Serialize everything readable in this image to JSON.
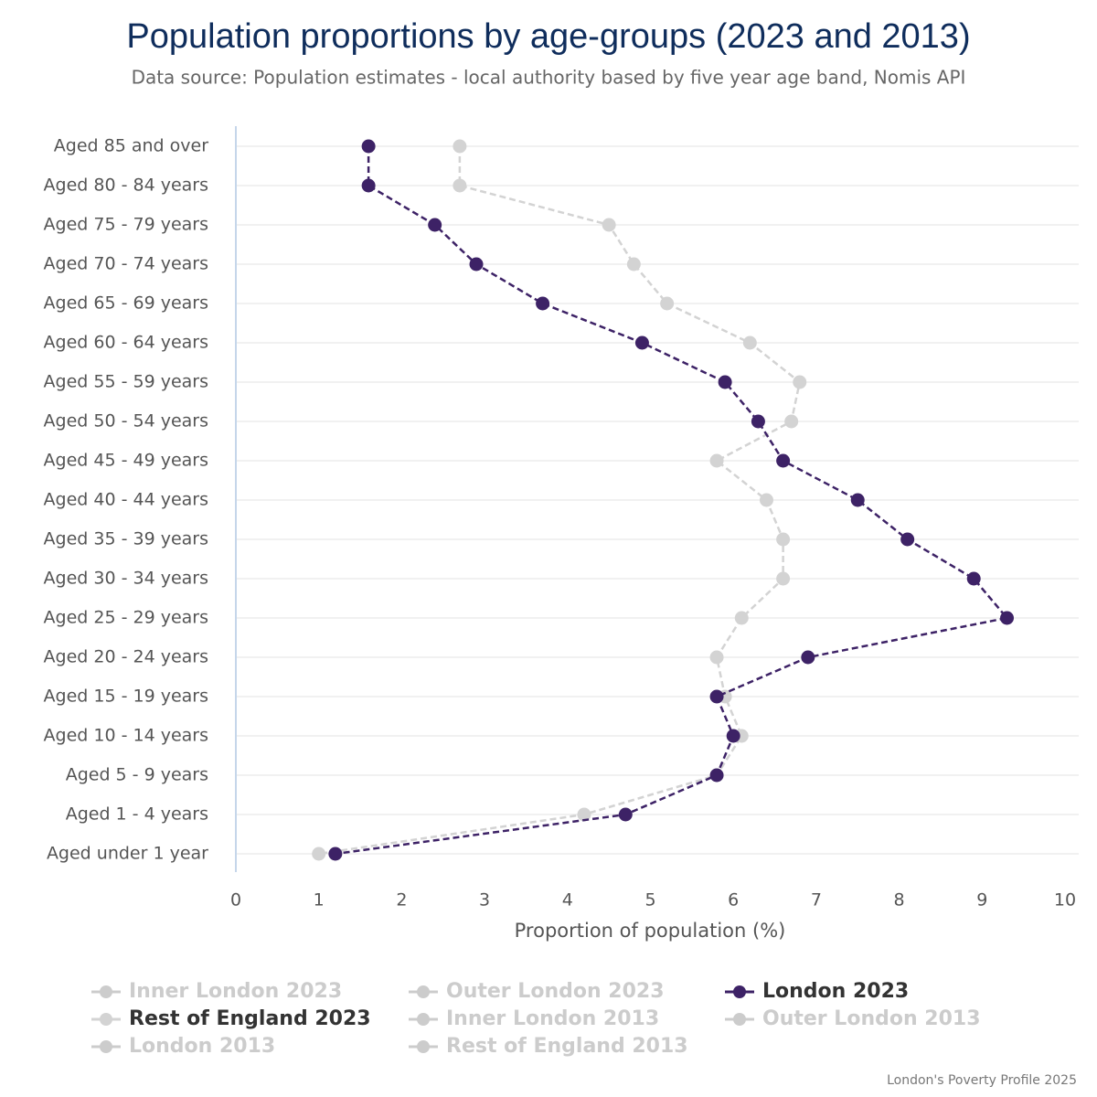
{
  "chart_data": {
    "type": "line",
    "orientation": "horizontal",
    "title": "Population proportions by age-groups (2023 and 2013)",
    "subtitle": "Data source: Population estimates - local authority based by five year age band, Nomis API",
    "x_label": "Proportion of population (%)",
    "credit": "London's Poverty Profile 2025",
    "categories": [
      "Aged 85 and over",
      "Aged 80 - 84 years",
      "Aged 75 - 79 years",
      "Aged 70 - 74 years",
      "Aged 65 - 69 years",
      "Aged 60 - 64 years",
      "Aged 55 - 59 years",
      "Aged 50 - 54 years",
      "Aged 45 - 49 years",
      "Aged 40 - 44 years",
      "Aged 35 - 39 years",
      "Aged 30 - 34 years",
      "Aged 25 - 29 years",
      "Aged 20 - 24 years",
      "Aged 15 - 19 years",
      "Aged 10 - 14 years",
      "Aged 5 - 9 years",
      "Aged 1 - 4 years",
      "Aged under 1 year"
    ],
    "xlim": [
      0,
      10
    ],
    "xticks": [
      0,
      1,
      2,
      3,
      4,
      5,
      6,
      7,
      8,
      9,
      10
    ],
    "grid": true,
    "legend": "bottom",
    "series": [
      {
        "name": "Inner London 2023",
        "color": "#cccccc",
        "visible": false,
        "values": [
          null,
          null,
          null,
          null,
          null,
          null,
          null,
          null,
          null,
          null,
          null,
          null,
          null,
          null,
          null,
          null,
          null,
          null,
          null
        ]
      },
      {
        "name": "Outer London 2023",
        "color": "#cccccc",
        "visible": false,
        "values": [
          null,
          null,
          null,
          null,
          null,
          null,
          null,
          null,
          null,
          null,
          null,
          null,
          null,
          null,
          null,
          null,
          null,
          null,
          null
        ]
      },
      {
        "name": "London 2023",
        "color": "#3d2266",
        "visible": true,
        "values": [
          1.6,
          1.6,
          2.4,
          2.9,
          3.7,
          4.9,
          5.9,
          6.3,
          6.6,
          7.5,
          8.1,
          8.9,
          9.3,
          6.9,
          5.8,
          6.0,
          5.8,
          4.7,
          1.2
        ]
      },
      {
        "name": "Rest of England 2023",
        "color": "#d3d3d3",
        "visible": true,
        "values": [
          2.7,
          2.7,
          4.5,
          4.8,
          5.2,
          6.2,
          6.8,
          6.7,
          5.8,
          6.4,
          6.6,
          6.6,
          6.1,
          5.8,
          5.9,
          6.1,
          5.8,
          4.2,
          1.0
        ]
      },
      {
        "name": "Inner London 2013",
        "color": "#cccccc",
        "visible": false,
        "values": [
          null,
          null,
          null,
          null,
          null,
          null,
          null,
          null,
          null,
          null,
          null,
          null,
          null,
          null,
          null,
          null,
          null,
          null,
          null
        ]
      },
      {
        "name": "Outer London 2013",
        "color": "#cccccc",
        "visible": false,
        "values": [
          null,
          null,
          null,
          null,
          null,
          null,
          null,
          null,
          null,
          null,
          null,
          null,
          null,
          null,
          null,
          null,
          null,
          null,
          null
        ]
      },
      {
        "name": "London 2013",
        "color": "#cccccc",
        "visible": false,
        "values": [
          null,
          null,
          null,
          null,
          null,
          null,
          null,
          null,
          null,
          null,
          null,
          null,
          null,
          null,
          null,
          null,
          null,
          null,
          null
        ]
      },
      {
        "name": "Rest of England 2013",
        "color": "#cccccc",
        "visible": false,
        "values": [
          null,
          null,
          null,
          null,
          null,
          null,
          null,
          null,
          null,
          null,
          null,
          null,
          null,
          null,
          null,
          null,
          null,
          null,
          null
        ]
      }
    ]
  }
}
